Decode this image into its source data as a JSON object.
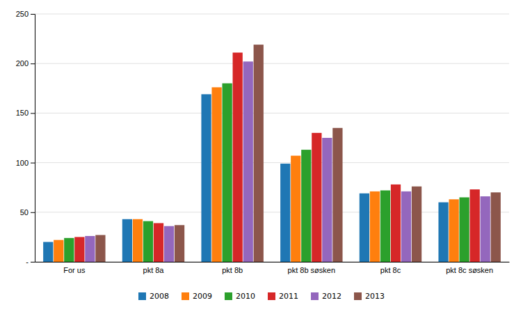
{
  "chart_data": {
    "type": "bar",
    "categories": [
      "For us",
      "pkt 8a",
      "pkt 8b",
      "pkt 8b søsken",
      "pkt 8c",
      "pkt 8c søsken"
    ],
    "series": [
      {
        "name": "2008",
        "values": [
          20,
          43,
          169,
          99,
          69,
          60
        ]
      },
      {
        "name": "2009",
        "values": [
          22,
          43,
          176,
          107,
          71,
          63
        ]
      },
      {
        "name": "2010",
        "values": [
          24,
          41,
          180,
          113,
          72,
          65
        ]
      },
      {
        "name": "2011",
        "values": [
          25,
          39,
          211,
          130,
          78,
          73
        ]
      },
      {
        "name": "2012",
        "values": [
          26,
          36,
          202,
          125,
          71,
          66
        ]
      },
      {
        "name": "2013",
        "values": [
          27,
          37,
          219,
          135,
          76,
          70
        ]
      }
    ],
    "ylim": [
      0,
      250
    ],
    "yticks": [
      {
        "value": 0,
        "label": "-"
      },
      50,
      100,
      150,
      200,
      250
    ],
    "grid": true,
    "legend": "bottom"
  }
}
